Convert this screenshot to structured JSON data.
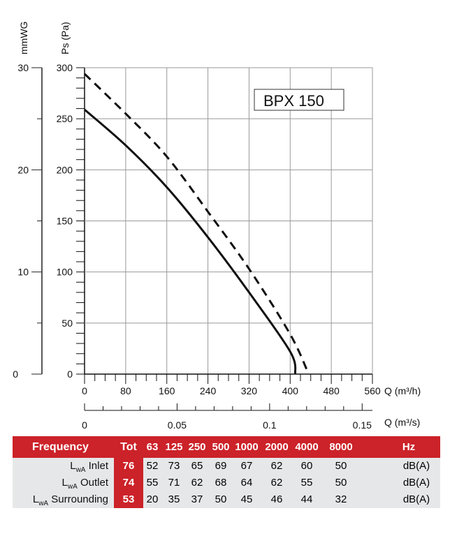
{
  "chart_data": {
    "type": "line",
    "title": "BPX 150",
    "xlabel": "Q (m³/h)",
    "x2label": "Q (m³/s)",
    "ylabel": "Ps (Pa)",
    "y2label": "mmWG",
    "xlim": [
      0,
      560
    ],
    "ylim": [
      0,
      300
    ],
    "x_ticks": [
      "0",
      "80",
      "160",
      "240",
      "320",
      "400",
      "480",
      "560"
    ],
    "x2_ticks": [
      "0",
      "0.05",
      "0.1",
      "0.15"
    ],
    "x2_values": [
      0,
      0.05,
      0.1,
      0.15
    ],
    "y_ticks": [
      "0",
      "50",
      "100",
      "150",
      "200",
      "250",
      "300"
    ],
    "y2_ticks": [
      "0",
      "10",
      "20",
      "30"
    ],
    "grid": true,
    "series": [
      {
        "name": "solid",
        "style": "solid",
        "x": [
          0,
          80,
          160,
          240,
          320,
          400,
          410
        ],
        "y": [
          259,
          224,
          183,
          134,
          80,
          22,
          0
        ]
      },
      {
        "name": "dashed",
        "style": "dashed",
        "x": [
          0,
          80,
          160,
          240,
          320,
          400,
          436
        ],
        "y": [
          294,
          255,
          213,
          159,
          103,
          39,
          0
        ]
      }
    ]
  },
  "table": {
    "header": {
      "label": "Frequency",
      "tot": "Tot",
      "bands": [
        "63",
        "125",
        "250",
        "500",
        "1000",
        "2000",
        "4000",
        "8000"
      ],
      "unit": "Hz"
    },
    "rows": [
      {
        "prefix": "L",
        "sub": "wA",
        "name": "Inlet",
        "tot": "76",
        "values": [
          "52",
          "73",
          "65",
          "69",
          "67",
          "62",
          "60",
          "50"
        ],
        "unit": "dB(A)"
      },
      {
        "prefix": "L",
        "sub": "wA",
        "name": "Outlet",
        "tot": "74",
        "values": [
          "55",
          "71",
          "62",
          "68",
          "64",
          "62",
          "55",
          "50"
        ],
        "unit": "dB(A)"
      },
      {
        "prefix": "L",
        "sub": "wA",
        "name": "Surrounding",
        "tot": "53",
        "values": [
          "20",
          "35",
          "37",
          "50",
          "45",
          "46",
          "44",
          "32"
        ],
        "unit": "dB(A)"
      }
    ]
  },
  "colors": {
    "accent": "#cc2229",
    "table_bg": "#e6e7e8"
  }
}
